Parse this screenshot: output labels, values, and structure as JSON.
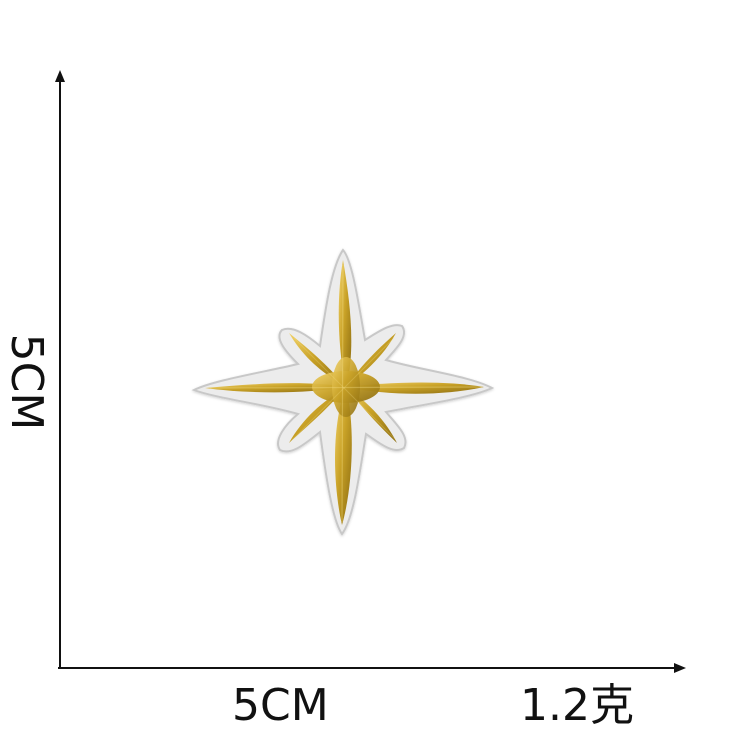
{
  "dimensions": {
    "width_label": "5CM",
    "height_label": "5CM",
    "weight_label": "1.2克"
  },
  "patch": {
    "icon": "eight-point-star-patch",
    "colors": {
      "gold": "#c9a227",
      "gold_dark": "#8a6b10",
      "gold_light": "#f2d36a",
      "backing": "#ececec",
      "backing_edge": "#c8c8c8"
    }
  }
}
